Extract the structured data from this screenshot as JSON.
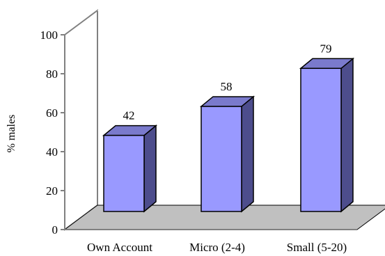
{
  "chart_data": {
    "type": "bar",
    "style": "3d",
    "title": "",
    "xlabel": "",
    "ylabel": "% males",
    "ylim": [
      0,
      100
    ],
    "yticks": [
      "0",
      "20",
      "40",
      "60",
      "80",
      "100"
    ],
    "categories": [
      "Own Account",
      "Micro (2-4)",
      "Small (5-20)"
    ],
    "values": [
      42,
      58,
      79
    ],
    "data_labels": [
      "42",
      "58",
      "79"
    ],
    "grid": false,
    "legend": "none",
    "colors": {
      "bar_front": "#9999ff",
      "bar_top": "#7a7acc",
      "bar_side": "#4d4d8c",
      "floor": "#c0c0c0",
      "walls": "#ffffff",
      "axis": "#808080"
    }
  }
}
